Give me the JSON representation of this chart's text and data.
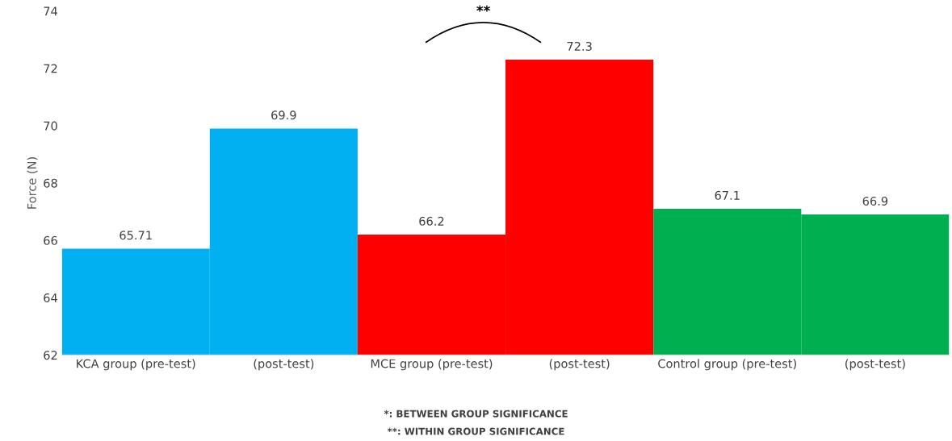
{
  "chart_data": {
    "type": "bar",
    "ylabel": "Force (N)",
    "categories": [
      "KCA group (pre-test)",
      "(post-test)",
      "MCE group (pre-test)",
      "(post-test)",
      "Control group (pre-test)",
      "(post-test)"
    ],
    "values": [
      65.71,
      69.9,
      66.2,
      72.3,
      67.1,
      66.9
    ],
    "colors": [
      "#00b0f0",
      "#00b0f0",
      "#ff0000",
      "#ff0000",
      "#00b050",
      "#00b050"
    ],
    "ylim": [
      62,
      74
    ],
    "yticks": [
      62,
      64,
      66,
      68,
      70,
      72,
      74
    ],
    "grid": false,
    "data_labels": true,
    "annotations": [
      "**",
      "*: BETWEEN GROUP SIGNIFICANCE",
      "**: WITHIN GROUP SIGNIFICANCE"
    ]
  }
}
